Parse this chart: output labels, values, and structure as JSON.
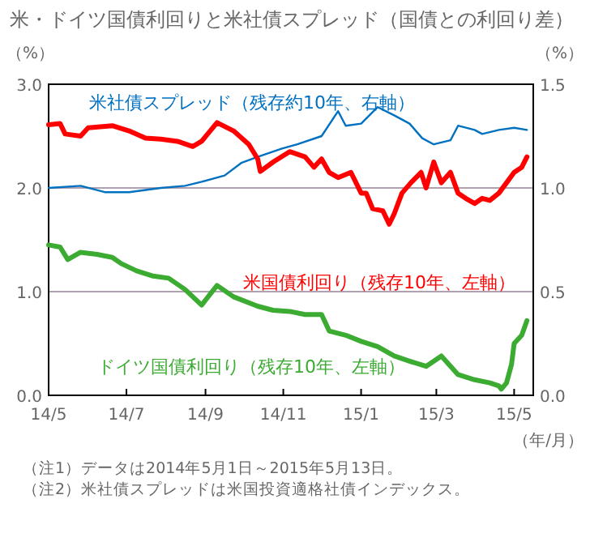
{
  "chart_data": {
    "type": "line",
    "title": "米・ドイツ国債利回りと米社債スプレッド（国債との利回り差）",
    "ylabel": "（%）",
    "y2label": "（%）",
    "xlabel": "（年/月）",
    "annotations": [
      "（注1）データは2014年5月1日～2015年5月13日。",
      "（注2）米社債スプレッドは米国投資適格社債インデックス。"
    ],
    "xlim": [
      "2014-05-01",
      "2015-05-16"
    ],
    "xticks": [
      {
        "value": "2014-05-01",
        "label": "14/5"
      },
      {
        "value": "2014-07-01",
        "label": "14/7"
      },
      {
        "value": "2014-09-01",
        "label": "14/9"
      },
      {
        "value": "2014-11-01",
        "label": "14/11"
      },
      {
        "value": "2015-01-01",
        "label": "15/1"
      },
      {
        "value": "2015-03-01",
        "label": "15/3"
      },
      {
        "value": "2015-05-01",
        "label": "15/5"
      }
    ],
    "ylim": [
      0,
      3
    ],
    "yticks": [
      {
        "value": 0,
        "label": "0.0"
      },
      {
        "value": 1,
        "label": "1.0"
      },
      {
        "value": 2,
        "label": "2.0"
      },
      {
        "value": 3,
        "label": "3.0"
      }
    ],
    "y2lim": [
      0,
      1.5
    ],
    "y2ticks": [
      {
        "value": 0,
        "label": "0.0"
      },
      {
        "value": 0.5,
        "label": "0.5"
      },
      {
        "value": 1,
        "label": "1.0"
      },
      {
        "value": 1.5,
        "label": "1.5"
      }
    ],
    "grid": "y",
    "series": [
      {
        "name": "米社債スプレッド（残存約10年、右軸）",
        "color": "#0070c0",
        "axis": "y2",
        "x": [
          "2014-05-01",
          "2014-05-26",
          "2014-06-14",
          "2014-07-03",
          "2014-07-28",
          "2014-08-16",
          "2014-08-29",
          "2014-09-16",
          "2014-09-29",
          "2014-10-12",
          "2014-10-31",
          "2014-11-12",
          "2014-12-01",
          "2014-12-14",
          "2014-12-20",
          "2015-01-01",
          "2015-01-14",
          "2015-01-27",
          "2015-02-08",
          "2015-02-18",
          "2015-02-27",
          "2015-03-12",
          "2015-03-18",
          "2015-03-31",
          "2015-04-06",
          "2015-04-19",
          "2015-05-01",
          "2015-05-11"
        ],
        "values": [
          1.0,
          1.01,
          0.98,
          0.98,
          1.0,
          1.01,
          1.03,
          1.06,
          1.12,
          1.15,
          1.19,
          1.21,
          1.25,
          1.37,
          1.3,
          1.31,
          1.39,
          1.35,
          1.31,
          1.24,
          1.21,
          1.23,
          1.3,
          1.28,
          1.26,
          1.28,
          1.29,
          1.28
        ]
      },
      {
        "name": "米国債利回り（残存10年、左軸）",
        "color": "#ff0000",
        "x": [
          "2014-05-01",
          "2014-05-10",
          "2014-05-14",
          "2014-05-26",
          "2014-06-01",
          "2014-06-20",
          "2014-07-03",
          "2014-07-16",
          "2014-07-28",
          "2014-08-10",
          "2014-08-22",
          "2014-08-29",
          "2014-09-10",
          "2014-09-23",
          "2014-10-05",
          "2014-10-12",
          "2014-10-14",
          "2014-10-24",
          "2014-11-06",
          "2014-11-18",
          "2014-11-25",
          "2014-12-01",
          "2014-12-07",
          "2014-12-14",
          "2014-12-24",
          "2015-01-01",
          "2015-01-05",
          "2015-01-10",
          "2015-01-18",
          "2015-01-23",
          "2015-01-27",
          "2015-02-02",
          "2015-02-09",
          "2015-02-17",
          "2015-02-21",
          "2015-02-27",
          "2015-03-05",
          "2015-03-12",
          "2015-03-18",
          "2015-03-24",
          "2015-03-31",
          "2015-04-06",
          "2015-04-12",
          "2015-04-19",
          "2015-04-25",
          "2015-05-01",
          "2015-05-07",
          "2015-05-11"
        ],
        "values": [
          2.61,
          2.62,
          2.52,
          2.5,
          2.58,
          2.6,
          2.55,
          2.48,
          2.47,
          2.45,
          2.4,
          2.45,
          2.63,
          2.55,
          2.42,
          2.28,
          2.16,
          2.25,
          2.35,
          2.3,
          2.2,
          2.28,
          2.15,
          2.1,
          2.15,
          1.95,
          1.95,
          1.8,
          1.78,
          1.65,
          1.75,
          1.95,
          2.05,
          2.15,
          2.0,
          2.25,
          2.05,
          2.15,
          1.95,
          1.9,
          1.85,
          1.9,
          1.88,
          1.95,
          2.05,
          2.15,
          2.2,
          2.3
        ]
      },
      {
        "name": "ドイツ国債利回り（残存10年、左軸）",
        "color": "#3cab32",
        "x": [
          "2014-05-01",
          "2014-05-10",
          "2014-05-16",
          "2014-05-26",
          "2014-06-08",
          "2014-06-20",
          "2014-06-27",
          "2014-07-09",
          "2014-07-22",
          "2014-08-03",
          "2014-08-16",
          "2014-08-29",
          "2014-09-10",
          "2014-09-23",
          "2014-10-12",
          "2014-10-24",
          "2014-11-06",
          "2014-11-18",
          "2014-12-01",
          "2014-12-07",
          "2014-12-20",
          "2015-01-01",
          "2015-01-14",
          "2015-01-27",
          "2015-02-08",
          "2015-02-21",
          "2015-03-05",
          "2015-03-18",
          "2015-03-31",
          "2015-04-12",
          "2015-04-19",
          "2015-04-21",
          "2015-04-25",
          "2015-04-29",
          "2015-05-01",
          "2015-05-07",
          "2015-05-11"
        ],
        "values": [
          1.45,
          1.43,
          1.31,
          1.38,
          1.36,
          1.33,
          1.27,
          1.2,
          1.15,
          1.13,
          1.02,
          0.87,
          1.06,
          0.95,
          0.86,
          0.82,
          0.81,
          0.78,
          0.78,
          0.62,
          0.58,
          0.52,
          0.47,
          0.38,
          0.33,
          0.28,
          0.38,
          0.2,
          0.15,
          0.12,
          0.09,
          0.06,
          0.12,
          0.3,
          0.5,
          0.58,
          0.72
        ]
      }
    ]
  }
}
